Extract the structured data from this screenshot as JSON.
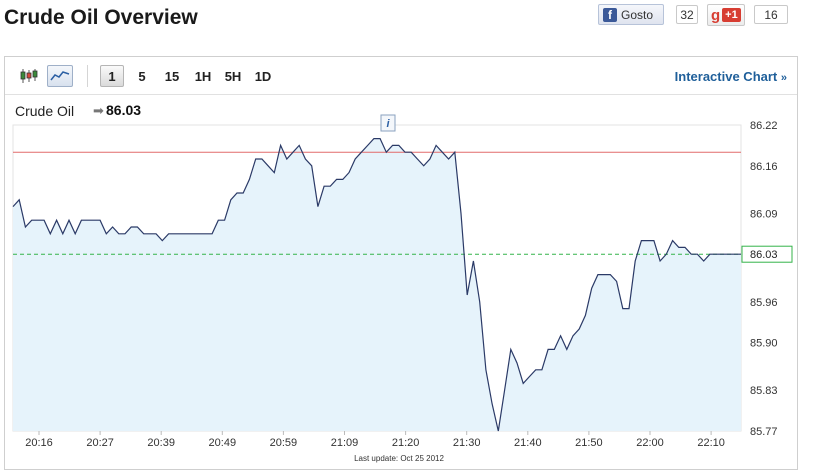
{
  "page": {
    "title": "Crude Oil Overview"
  },
  "social": {
    "facebook_label": "Gosto",
    "facebook_count": "32",
    "gplus_g": "g",
    "gplus_label": "+1",
    "gplus_count": "16"
  },
  "toolbar": {
    "icons": [
      "candlestick-chart-icon",
      "line-chart-icon"
    ],
    "periods": [
      "1",
      "5",
      "15",
      "1H",
      "5H",
      "1D"
    ],
    "active_period": "1",
    "interactive_label": "Interactive Chart",
    "interactive_arrow": "»"
  },
  "quote": {
    "name": "Crude Oil",
    "arrow": "➡",
    "value": "86.03"
  },
  "marker": {
    "label": "i"
  },
  "chart_data": {
    "type": "area",
    "ylim": [
      85.77,
      86.22
    ],
    "y_ticks": [
      "86.22",
      "86.16",
      "86.09",
      "86.03",
      "85.96",
      "85.90",
      "85.83",
      "85.77"
    ],
    "x_ticks": [
      "20:16",
      "20:27",
      "20:39",
      "20:49",
      "20:59",
      "21:09",
      "21:20",
      "21:30",
      "21:40",
      "21:50",
      "22:00",
      "22:10"
    ],
    "reference_line": 86.18,
    "last_price": 86.03,
    "last_price_label": "86.03",
    "footer": "Last update:  Oct 25 2012",
    "colors": {
      "line": "#2b3a67",
      "fill": "#e6f3fb",
      "reference": "#e26b6b",
      "last": "#34b34a"
    },
    "series": [
      {
        "values": [
          86.1,
          86.11,
          86.07,
          86.08,
          86.08,
          86.08,
          86.06,
          86.08,
          86.06,
          86.08,
          86.06,
          86.08,
          86.08,
          86.08,
          86.08,
          86.06,
          86.07,
          86.06,
          86.06,
          86.07,
          86.07,
          86.06,
          86.06,
          86.06,
          86.05,
          86.06,
          86.06,
          86.06,
          86.06,
          86.06,
          86.06,
          86.06,
          86.06,
          86.08,
          86.08,
          86.11,
          86.12,
          86.12,
          86.14,
          86.17,
          86.17,
          86.16,
          86.15,
          86.19,
          86.17,
          86.18,
          86.19,
          86.17,
          86.16,
          86.1,
          86.13,
          86.13,
          86.14,
          86.14,
          86.15,
          86.17,
          86.18,
          86.19,
          86.2,
          86.2,
          86.18,
          86.19,
          86.19,
          86.18,
          86.18,
          86.17,
          86.16,
          86.17,
          86.19,
          86.18,
          86.17,
          86.18,
          86.09,
          85.97,
          86.02,
          85.96,
          85.86,
          85.81,
          85.77,
          85.83,
          85.89,
          85.87,
          85.84,
          85.85,
          85.86,
          85.86,
          85.89,
          85.89,
          85.91,
          85.89,
          85.91,
          85.92,
          85.94,
          85.98,
          86.0,
          86.0,
          86.0,
          85.99,
          85.95,
          85.95,
          86.02,
          86.05,
          86.05,
          86.05,
          86.02,
          86.03,
          86.05,
          86.04,
          86.04,
          86.03,
          86.03,
          86.02,
          86.03,
          86.03,
          86.03,
          86.03,
          86.03,
          86.03
        ]
      }
    ]
  }
}
